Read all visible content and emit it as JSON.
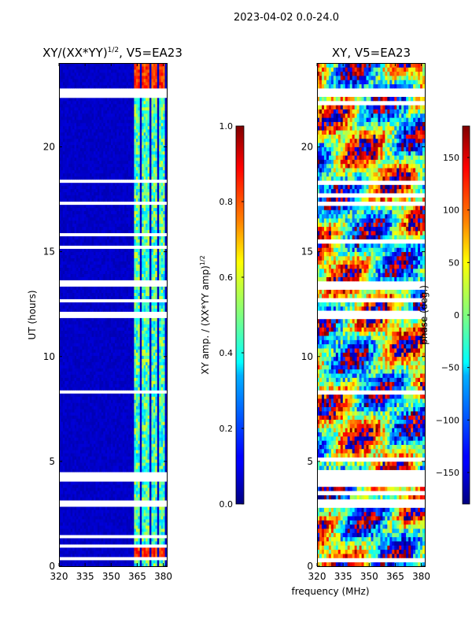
{
  "suptitle": "2023-04-02 0.0-24.0",
  "shared": {
    "xlabel": "frequency (MHz)",
    "ylabel": "UT (hours)",
    "xlim": [
      320,
      382
    ],
    "ylim": [
      0,
      24
    ],
    "xticks": [
      320,
      335,
      350,
      365,
      380
    ],
    "yticks": [
      0,
      5,
      10,
      15,
      20
    ],
    "ytick_labels": [
      "0",
      "5",
      "10",
      "15",
      "20"
    ]
  },
  "panels": {
    "amp": {
      "title": "XY/(XX*YY)",
      "title_sup": "1/2",
      "title_tail": ", V5=EA23",
      "colorbar": {
        "label": "XY amp. / (XX*YY amp)",
        "label_sup": "1/2",
        "range": [
          0,
          1
        ],
        "ticks": [
          0.0,
          0.2,
          0.4,
          0.6,
          0.8,
          1.0
        ],
        "tick_labels": [
          "0.0",
          "0.2",
          "0.4",
          "0.6",
          "0.8",
          "1.0"
        ]
      }
    },
    "phase": {
      "title": "XY, V5=EA23",
      "colorbar": {
        "label": "phase (deg.)",
        "range": [
          -180,
          180
        ],
        "ticks": [
          -150,
          -100,
          -50,
          0,
          50,
          100,
          150
        ],
        "tick_labels": [
          "−150",
          "−100",
          "−50",
          "0",
          "50",
          "100",
          "150"
        ]
      }
    }
  },
  "colormap_stops": [
    "#00007f",
    "#0000ff",
    "#007fff",
    "#00ffff",
    "#7fff7f",
    "#ffff00",
    "#ff7f00",
    "#ff0000",
    "#7f0000"
  ],
  "chart_data": [
    {
      "type": "heatmap",
      "title": "XY/(XX*YY)^1/2, V5=EA23",
      "xlabel": "frequency (MHz)",
      "ylabel": "UT (hours)",
      "xlim": [
        320,
        382
      ],
      "ylim": [
        0,
        24
      ],
      "value_range": [
        0,
        1
      ],
      "colorbar_label": "XY amp. / (XX*YY amp)^1/2",
      "description_values": {
        "background_level": 0.05,
        "channel_bands_MHz": [
          [
            363,
            367
          ],
          [
            368,
            372
          ],
          [
            373,
            377
          ],
          [
            378,
            381
          ]
        ],
        "band_level_range": [
          0.3,
          0.6
        ],
        "band_peak_level": 0.9
      },
      "missing_time_ranges_h": [
        [
          0.3,
          0.4
        ],
        [
          1.4,
          1.5
        ],
        [
          2.8,
          3.2
        ],
        [
          4.1,
          4.5
        ],
        [
          13.3,
          13.6
        ],
        [
          22.4,
          22.7
        ]
      ]
    },
    {
      "type": "heatmap",
      "title": "XY, V5=EA23",
      "xlabel": "frequency (MHz)",
      "ylabel": "UT (hours)",
      "xlim": [
        320,
        382
      ],
      "ylim": [
        0,
        24
      ],
      "value_range": [
        -180,
        180
      ],
      "colorbar_label": "phase (deg.)",
      "missing_time_ranges_h": [
        [
          0.3,
          0.4
        ],
        [
          1.4,
          1.5
        ],
        [
          2.8,
          3.2
        ],
        [
          4.1,
          4.5
        ],
        [
          13.3,
          13.6
        ],
        [
          22.4,
          22.7
        ]
      ]
    }
  ]
}
